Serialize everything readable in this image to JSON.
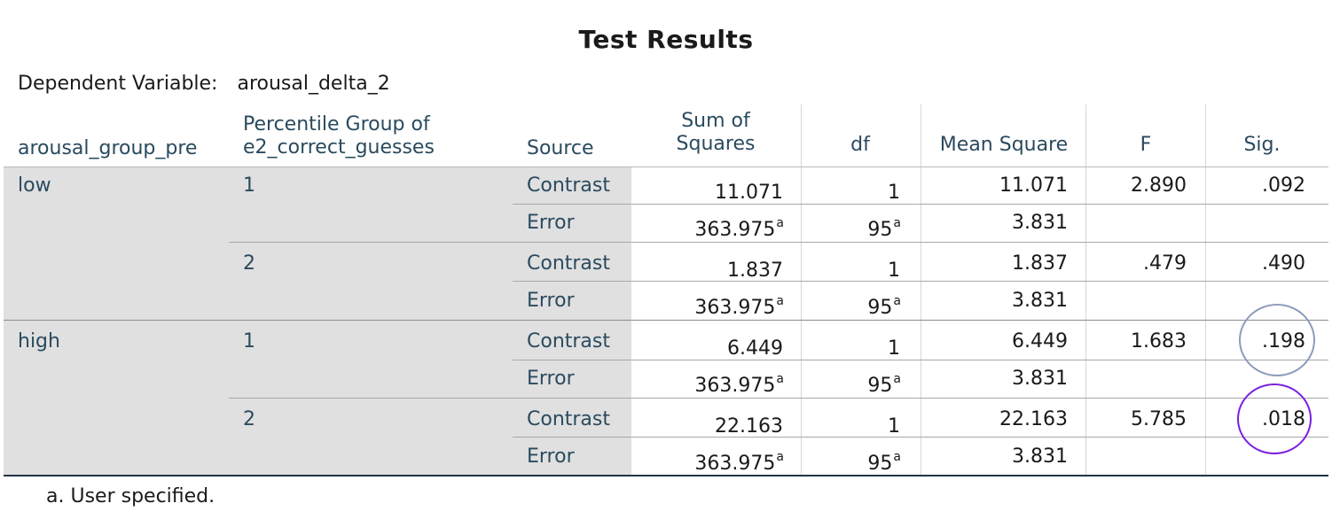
{
  "title": "Test Results",
  "dependent_variable": {
    "label": "Dependent Variable:",
    "value": "arousal_delta_2"
  },
  "headers": {
    "group": "arousal_group_pre",
    "percentile_line1": "Percentile Group of",
    "percentile_line2": "e2_correct_guesses",
    "source": "Source",
    "ss_line1": "Sum of",
    "ss_line2": "Squares",
    "df": "df",
    "ms": "Mean Square",
    "f": "F",
    "sig": "Sig."
  },
  "groups": [
    {
      "label": "low"
    },
    {
      "label": "high"
    }
  ],
  "percentile_labels": [
    "1",
    "2",
    "1",
    "2"
  ],
  "rows": [
    {
      "source": "Contrast",
      "ss": "11.071",
      "ss_sup": "",
      "df": "1",
      "df_sup": "",
      "ms": "11.071",
      "f": "2.890",
      "sig": ".092"
    },
    {
      "source": "Error",
      "ss": "363.975",
      "ss_sup": "a",
      "df": "95",
      "df_sup": "a",
      "ms": "3.831",
      "f": "",
      "sig": ""
    },
    {
      "source": "Contrast",
      "ss": "1.837",
      "ss_sup": "",
      "df": "1",
      "df_sup": "",
      "ms": "1.837",
      "f": ".479",
      "sig": ".490"
    },
    {
      "source": "Error",
      "ss": "363.975",
      "ss_sup": "a",
      "df": "95",
      "df_sup": "a",
      "ms": "3.831",
      "f": "",
      "sig": ""
    },
    {
      "source": "Contrast",
      "ss": "6.449",
      "ss_sup": "",
      "df": "1",
      "df_sup": "",
      "ms": "6.449",
      "f": "1.683",
      "sig": ".198"
    },
    {
      "source": "Error",
      "ss": "363.975",
      "ss_sup": "a",
      "df": "95",
      "df_sup": "a",
      "ms": "3.831",
      "f": "",
      "sig": ""
    },
    {
      "source": "Contrast",
      "ss": "22.163",
      "ss_sup": "",
      "df": "1",
      "df_sup": "",
      "ms": "22.163",
      "f": "5.785",
      "sig": ".018"
    },
    {
      "source": "Error",
      "ss": "363.975",
      "ss_sup": "a",
      "df": "95",
      "df_sup": "a",
      "ms": "3.831",
      "f": "",
      "sig": ""
    }
  ],
  "annotations": [
    {
      "row": 4,
      "color": "#8e9bbd"
    },
    {
      "row": 6,
      "color": "#7a1fe0"
    }
  ],
  "footnote": "a. User specified."
}
